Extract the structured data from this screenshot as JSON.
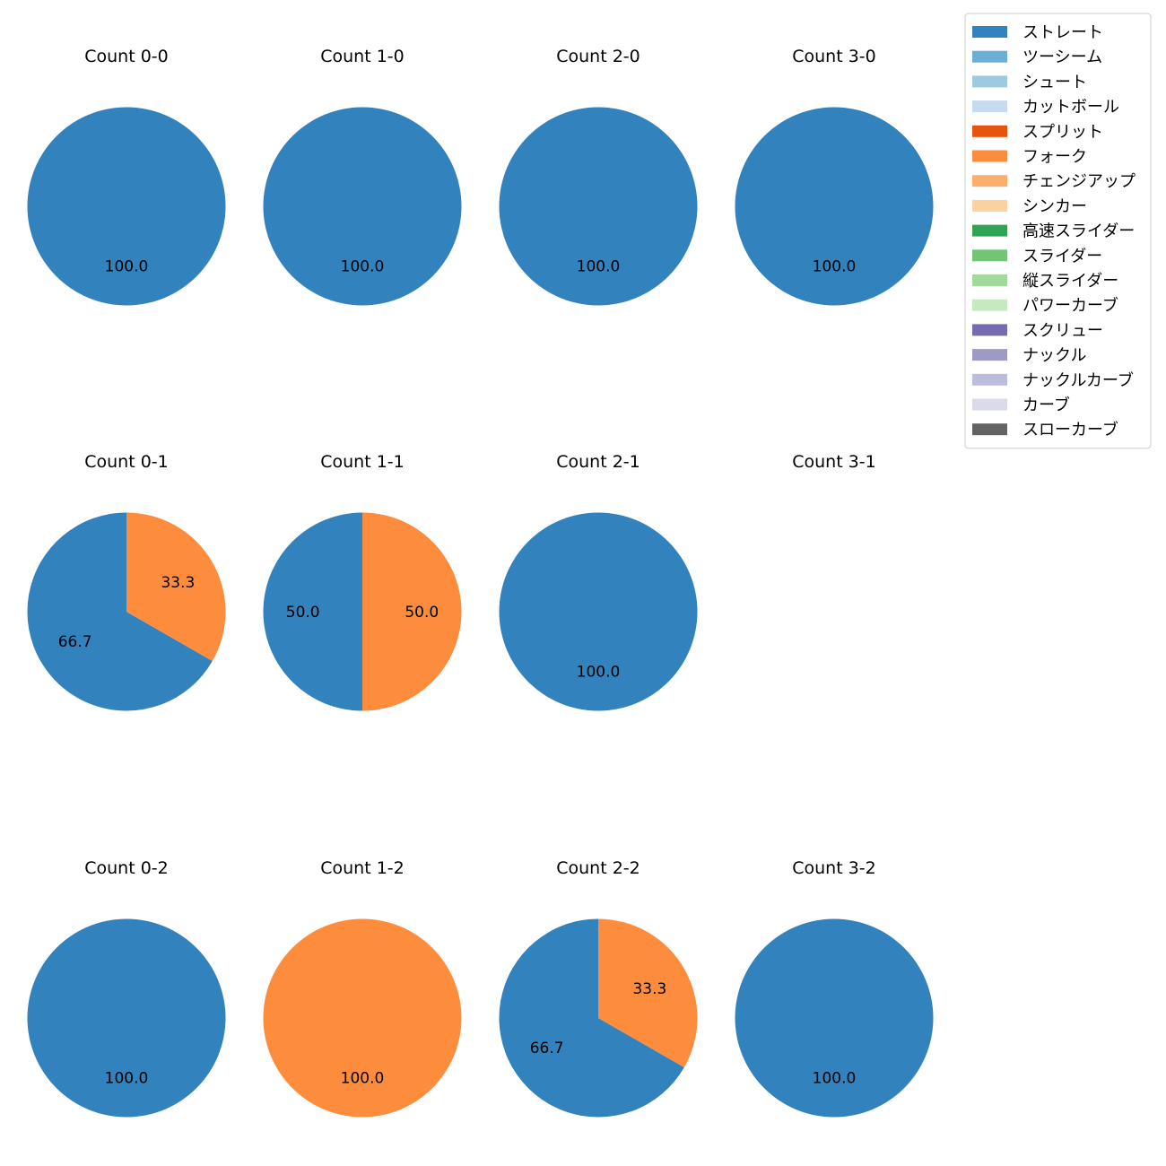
{
  "legend": {
    "items": [
      {
        "label": "ストレート",
        "color": "#3182bd"
      },
      {
        "label": "ツーシーム",
        "color": "#6baed6"
      },
      {
        "label": "シュート",
        "color": "#9ecae1"
      },
      {
        "label": "カットボール",
        "color": "#c6dbef"
      },
      {
        "label": "スプリット",
        "color": "#e6550d"
      },
      {
        "label": "フォーク",
        "color": "#fd8d3c"
      },
      {
        "label": "チェンジアップ",
        "color": "#fdae6b"
      },
      {
        "label": "シンカー",
        "color": "#fdd0a2"
      },
      {
        "label": "高速スライダー",
        "color": "#31a354"
      },
      {
        "label": "スライダー",
        "color": "#74c476"
      },
      {
        "label": "縦スライダー",
        "color": "#a1d99b"
      },
      {
        "label": "パワーカーブ",
        "color": "#c7e9c0"
      },
      {
        "label": "スクリュー",
        "color": "#756bb1"
      },
      {
        "label": "ナックル",
        "color": "#9e9ac8"
      },
      {
        "label": "ナックルカーブ",
        "color": "#bcbddc"
      },
      {
        "label": "カーブ",
        "color": "#dadaeb"
      },
      {
        "label": "スローカーブ",
        "color": "#636363"
      }
    ]
  },
  "chart_data": [
    {
      "type": "pie",
      "title": "Count 0-0",
      "slices": [
        {
          "label": "ストレート",
          "value": 100.0
        }
      ]
    },
    {
      "type": "pie",
      "title": "Count 1-0",
      "slices": [
        {
          "label": "ストレート",
          "value": 100.0
        }
      ]
    },
    {
      "type": "pie",
      "title": "Count 2-0",
      "slices": [
        {
          "label": "ストレート",
          "value": 100.0
        }
      ]
    },
    {
      "type": "pie",
      "title": "Count 3-0",
      "slices": [
        {
          "label": "ストレート",
          "value": 100.0
        }
      ]
    },
    {
      "type": "pie",
      "title": "Count 0-1",
      "slices": [
        {
          "label": "ストレート",
          "value": 66.7
        },
        {
          "label": "フォーク",
          "value": 33.3
        }
      ]
    },
    {
      "type": "pie",
      "title": "Count 1-1",
      "slices": [
        {
          "label": "ストレート",
          "value": 50.0
        },
        {
          "label": "フォーク",
          "value": 50.0
        }
      ]
    },
    {
      "type": "pie",
      "title": "Count 2-1",
      "slices": [
        {
          "label": "ストレート",
          "value": 100.0
        }
      ]
    },
    {
      "type": "pie",
      "title": "Count 3-1",
      "slices": []
    },
    {
      "type": "pie",
      "title": "Count 0-2",
      "slices": [
        {
          "label": "ストレート",
          "value": 100.0
        }
      ]
    },
    {
      "type": "pie",
      "title": "Count 1-2",
      "slices": [
        {
          "label": "フォーク",
          "value": 100.0
        }
      ]
    },
    {
      "type": "pie",
      "title": "Count 2-2",
      "slices": [
        {
          "label": "ストレート",
          "value": 66.7
        },
        {
          "label": "フォーク",
          "value": 33.3
        }
      ]
    },
    {
      "type": "pie",
      "title": "Count 3-2",
      "slices": [
        {
          "label": "ストレート",
          "value": 100.0
        }
      ]
    }
  ]
}
